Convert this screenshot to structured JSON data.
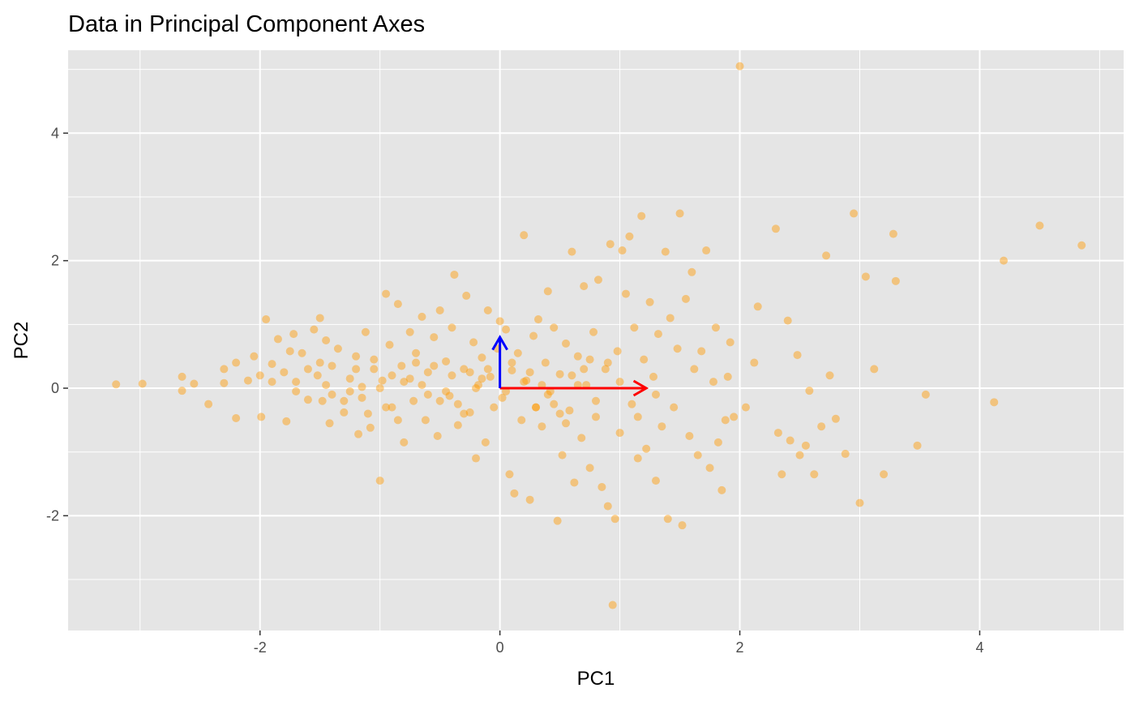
{
  "chart_data": {
    "type": "scatter",
    "title": "Data in Principal Component Axes",
    "xlabel": "PC1",
    "ylabel": "PC2",
    "xlim": [
      -3.6,
      5.2
    ],
    "ylim": [
      -3.8,
      5.3
    ],
    "x_ticks": [
      -2,
      0,
      2,
      4
    ],
    "y_ticks": [
      -2,
      0,
      2,
      4
    ],
    "x_tick_labels": [
      "-2",
      "0",
      "2",
      "4"
    ],
    "y_tick_labels": [
      "-2",
      "0",
      "2",
      "4"
    ],
    "grid": true,
    "legend": "none",
    "colors": {
      "panel": "#e5e5e5",
      "grid": "#ffffff",
      "point": "#ff9900",
      "pc1_arrow": "#ff0000",
      "pc2_arrow": "#0000ff"
    },
    "arrows": [
      {
        "name": "PC1 direction",
        "x0": 0,
        "y0": 0,
        "x1": 1.22,
        "y1": 0
      },
      {
        "name": "PC2 direction",
        "x0": 0,
        "y0": 0,
        "x1": 0,
        "y1": 0.8
      }
    ],
    "points": [
      [
        -3.2,
        0.06
      ],
      [
        -2.98,
        0.07
      ],
      [
        -2.65,
        0.18
      ],
      [
        -2.65,
        -0.04
      ],
      [
        -2.55,
        0.07
      ],
      [
        -2.43,
        -0.25
      ],
      [
        -2.3,
        0.3
      ],
      [
        -2.3,
        0.08
      ],
      [
        -2.2,
        0.4
      ],
      [
        -2.2,
        -0.47
      ],
      [
        -2.1,
        0.12
      ],
      [
        -2.05,
        0.5
      ],
      [
        -2.0,
        0.2
      ],
      [
        -1.99,
        -0.45
      ],
      [
        -1.95,
        1.08
      ],
      [
        -1.9,
        0.38
      ],
      [
        -1.85,
        0.77
      ],
      [
        -1.8,
        0.25
      ],
      [
        -1.78,
        -0.52
      ],
      [
        -1.75,
        0.58
      ],
      [
        -1.72,
        0.85
      ],
      [
        -1.7,
        -0.05
      ],
      [
        -1.65,
        0.55
      ],
      [
        -1.6,
        -0.18
      ],
      [
        -1.55,
        0.92
      ],
      [
        -1.52,
        0.2
      ],
      [
        -1.5,
        1.1
      ],
      [
        -1.48,
        -0.2
      ],
      [
        -1.45,
        0.75
      ],
      [
        -1.42,
        -0.55
      ],
      [
        -1.4,
        0.35
      ],
      [
        -1.35,
        0.62
      ],
      [
        -1.3,
        -0.38
      ],
      [
        -1.25,
        0.15
      ],
      [
        -1.2,
        0.5
      ],
      [
        -1.18,
        -0.72
      ],
      [
        -1.15,
        0.02
      ],
      [
        -1.12,
        0.88
      ],
      [
        -1.08,
        -0.62
      ],
      [
        -1.05,
        0.3
      ],
      [
        -1.0,
        -1.45
      ],
      [
        -0.98,
        0.12
      ],
      [
        -0.95,
        1.48
      ],
      [
        -0.92,
        0.68
      ],
      [
        -0.9,
        -0.3
      ],
      [
        -0.85,
        1.32
      ],
      [
        -0.82,
        0.35
      ],
      [
        -0.8,
        -0.85
      ],
      [
        -0.75,
        0.88
      ],
      [
        -0.72,
        -0.2
      ],
      [
        -0.7,
        0.55
      ],
      [
        -0.65,
        1.12
      ],
      [
        -0.62,
        -0.5
      ],
      [
        -0.6,
        0.25
      ],
      [
        -0.55,
        0.8
      ],
      [
        -0.52,
        -0.75
      ],
      [
        -0.5,
        1.22
      ],
      [
        -0.45,
        0.42
      ],
      [
        -0.42,
        -0.12
      ],
      [
        -0.4,
        0.95
      ],
      [
        -0.38,
        1.78
      ],
      [
        -0.35,
        -0.58
      ],
      [
        -0.3,
        0.3
      ],
      [
        -0.28,
        1.45
      ],
      [
        -0.25,
        -0.38
      ],
      [
        -0.22,
        0.72
      ],
      [
        -0.2,
        -1.1
      ],
      [
        -0.18,
        0.05
      ],
      [
        -0.15,
        0.48
      ],
      [
        -0.12,
        -0.85
      ],
      [
        -0.1,
        1.22
      ],
      [
        -0.08,
        0.18
      ],
      [
        -0.05,
        -0.3
      ],
      [
        -0.02,
        0.62
      ],
      [
        0.0,
        1.05
      ],
      [
        0.02,
        -0.15
      ],
      [
        0.05,
        0.92
      ],
      [
        0.08,
        -1.35
      ],
      [
        0.1,
        0.28
      ],
      [
        0.12,
        -1.65
      ],
      [
        0.15,
        0.55
      ],
      [
        0.18,
        -0.5
      ],
      [
        0.2,
        2.4
      ],
      [
        0.22,
        0.12
      ],
      [
        0.25,
        -1.75
      ],
      [
        0.28,
        0.82
      ],
      [
        0.3,
        -0.3
      ],
      [
        0.32,
        1.08
      ],
      [
        0.35,
        -0.6
      ],
      [
        0.38,
        0.4
      ],
      [
        0.4,
        1.52
      ],
      [
        0.42,
        -0.05
      ],
      [
        0.45,
        0.95
      ],
      [
        0.48,
        -2.08
      ],
      [
        0.5,
        0.22
      ],
      [
        0.52,
        -1.05
      ],
      [
        0.55,
        0.7
      ],
      [
        0.58,
        -0.35
      ],
      [
        0.6,
        2.14
      ],
      [
        0.62,
        -1.48
      ],
      [
        0.65,
        0.5
      ],
      [
        0.68,
        -0.78
      ],
      [
        0.7,
        1.6
      ],
      [
        0.72,
        0.05
      ],
      [
        0.75,
        -1.25
      ],
      [
        0.78,
        0.88
      ],
      [
        0.8,
        -0.45
      ],
      [
        0.82,
        1.7
      ],
      [
        0.85,
        -1.55
      ],
      [
        0.88,
        0.3
      ],
      [
        0.9,
        -1.85
      ],
      [
        0.92,
        2.26
      ],
      [
        0.94,
        -3.4
      ],
      [
        0.96,
        -2.05
      ],
      [
        0.98,
        0.58
      ],
      [
        1.0,
        -0.7
      ],
      [
        1.02,
        2.16
      ],
      [
        1.05,
        1.48
      ],
      [
        1.08,
        2.38
      ],
      [
        1.1,
        -0.25
      ],
      [
        1.12,
        0.95
      ],
      [
        1.15,
        -1.1
      ],
      [
        1.18,
        2.7
      ],
      [
        1.2,
        0.45
      ],
      [
        1.22,
        -0.95
      ],
      [
        1.25,
        1.35
      ],
      [
        1.28,
        0.18
      ],
      [
        1.3,
        -1.45
      ],
      [
        1.32,
        0.85
      ],
      [
        1.35,
        -0.6
      ],
      [
        1.38,
        2.14
      ],
      [
        1.4,
        -2.05
      ],
      [
        1.42,
        1.1
      ],
      [
        1.45,
        -0.3
      ],
      [
        1.48,
        0.62
      ],
      [
        1.5,
        2.74
      ],
      [
        1.52,
        -2.15
      ],
      [
        1.55,
        1.4
      ],
      [
        1.58,
        -0.75
      ],
      [
        1.6,
        1.82
      ],
      [
        1.62,
        0.3
      ],
      [
        1.65,
        -1.05
      ],
      [
        1.68,
        0.58
      ],
      [
        1.72,
        2.16
      ],
      [
        1.75,
        -1.25
      ],
      [
        1.78,
        0.1
      ],
      [
        1.8,
        0.95
      ],
      [
        1.82,
        -0.85
      ],
      [
        1.85,
        -1.6
      ],
      [
        1.88,
        -0.5
      ],
      [
        1.9,
        0.18
      ],
      [
        1.92,
        0.72
      ],
      [
        1.95,
        -0.45
      ],
      [
        2.0,
        5.05
      ],
      [
        2.05,
        -0.3
      ],
      [
        2.12,
        0.4
      ],
      [
        2.15,
        1.28
      ],
      [
        2.3,
        2.5
      ],
      [
        2.32,
        -0.7
      ],
      [
        2.35,
        -1.35
      ],
      [
        2.4,
        1.06
      ],
      [
        2.42,
        -0.82
      ],
      [
        2.48,
        0.52
      ],
      [
        2.5,
        -1.05
      ],
      [
        2.55,
        -0.9
      ],
      [
        2.58,
        -0.04
      ],
      [
        2.62,
        -1.35
      ],
      [
        2.68,
        -0.6
      ],
      [
        2.72,
        2.08
      ],
      [
        2.75,
        0.2
      ],
      [
        2.8,
        -0.48
      ],
      [
        2.88,
        -1.03
      ],
      [
        2.95,
        2.74
      ],
      [
        3.0,
        -1.8
      ],
      [
        3.05,
        1.75
      ],
      [
        3.12,
        0.3
      ],
      [
        3.2,
        -1.35
      ],
      [
        3.28,
        2.42
      ],
      [
        3.3,
        1.68
      ],
      [
        3.48,
        -0.9
      ],
      [
        3.55,
        -0.1
      ],
      [
        4.12,
        -0.22
      ],
      [
        4.2,
        2.0
      ],
      [
        4.5,
        2.55
      ],
      [
        4.85,
        2.24
      ],
      [
        -1.6,
        0.3
      ],
      [
        -1.4,
        -0.1
      ],
      [
        -1.2,
        0.3
      ],
      [
        -1.0,
        0.0
      ],
      [
        -0.8,
        0.1
      ],
      [
        -0.6,
        -0.1
      ],
      [
        -0.4,
        0.2
      ],
      [
        -0.2,
        0.0
      ],
      [
        0.2,
        0.1
      ],
      [
        0.4,
        -0.1
      ],
      [
        0.6,
        0.2
      ],
      [
        0.8,
        -0.2
      ],
      [
        1.0,
        0.1
      ],
      [
        -1.7,
        0.1
      ],
      [
        -1.3,
        -0.2
      ],
      [
        -0.9,
        0.2
      ],
      [
        -0.5,
        -0.2
      ],
      [
        -0.1,
        0.3
      ],
      [
        0.3,
        -0.3
      ],
      [
        0.7,
        0.3
      ],
      [
        -1.9,
        0.1
      ],
      [
        -1.5,
        0.4
      ],
      [
        -1.1,
        -0.4
      ],
      [
        -0.7,
        0.4
      ],
      [
        -0.3,
        -0.4
      ],
      [
        0.1,
        0.4
      ],
      [
        0.5,
        -0.4
      ],
      [
        0.9,
        0.4
      ],
      [
        1.3,
        -0.1
      ],
      [
        -1.45,
        0.05
      ],
      [
        -1.25,
        -0.05
      ],
      [
        -1.05,
        0.45
      ],
      [
        -0.85,
        -0.5
      ],
      [
        -0.65,
        0.05
      ],
      [
        -0.45,
        -0.05
      ],
      [
        -0.25,
        0.25
      ],
      [
        0.05,
        -0.05
      ],
      [
        0.25,
        0.25
      ],
      [
        0.45,
        -0.25
      ],
      [
        0.65,
        0.05
      ],
      [
        -1.15,
        -0.15
      ],
      [
        -0.95,
        -0.3
      ],
      [
        -0.75,
        0.15
      ],
      [
        -0.55,
        0.35
      ],
      [
        -0.35,
        -0.25
      ],
      [
        -0.15,
        0.15
      ],
      [
        0.35,
        0.05
      ],
      [
        0.55,
        -0.55
      ],
      [
        0.75,
        0.45
      ],
      [
        1.15,
        -0.45
      ]
    ]
  }
}
